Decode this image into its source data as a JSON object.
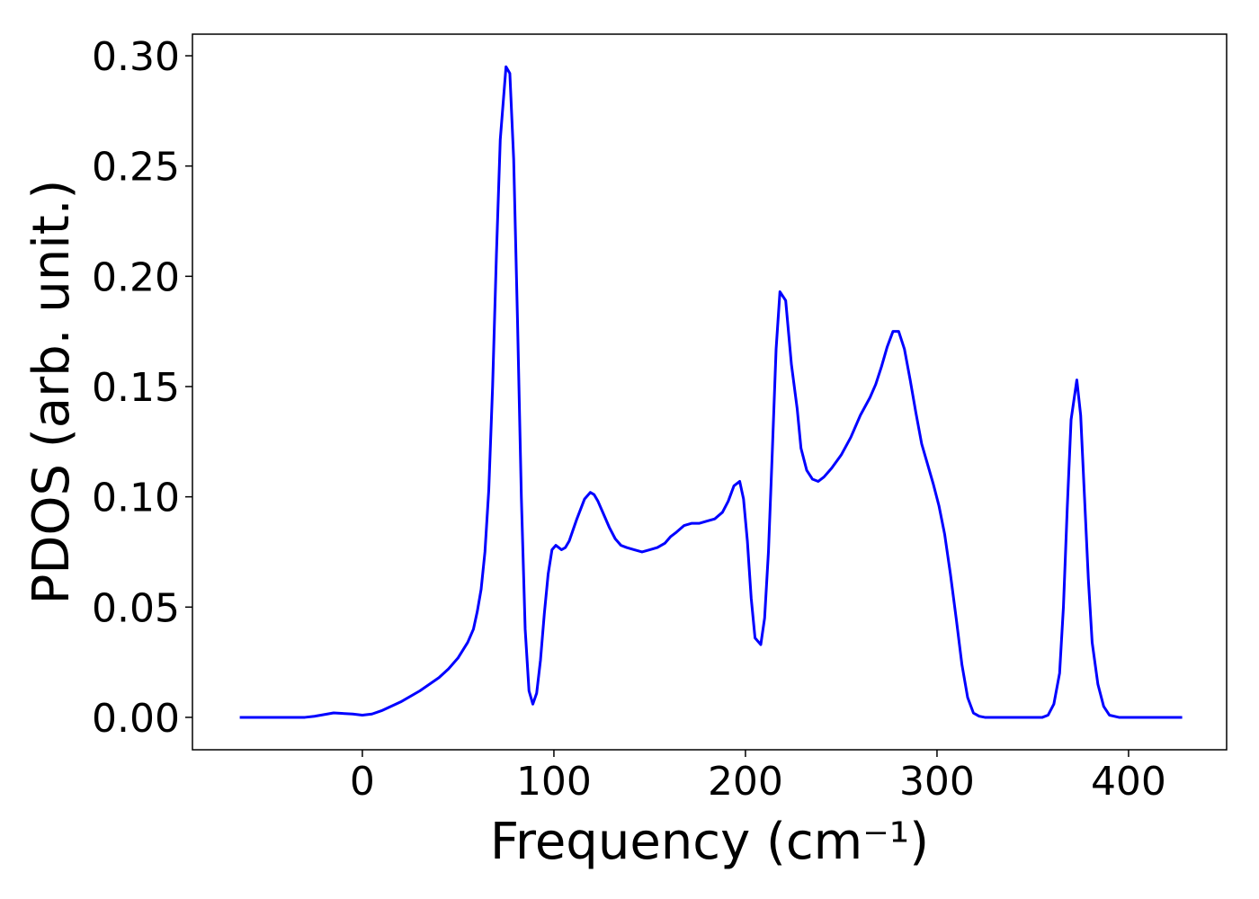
{
  "chart_data": {
    "type": "line",
    "xlabel": "Frequency (cm⁻¹)",
    "ylabel": "PDOS (arb. unit.)",
    "color": "#0000ff",
    "x": [
      -64,
      -30,
      -25,
      -15,
      -5,
      0,
      5,
      10,
      20,
      30,
      40,
      45,
      50,
      55,
      58,
      60,
      62,
      64,
      66,
      68,
      70,
      72,
      75,
      77,
      79,
      81,
      83,
      85,
      87,
      89,
      91,
      93,
      95,
      97,
      99,
      101,
      104,
      106,
      108,
      112,
      116,
      119,
      121,
      123,
      126,
      129,
      132,
      135,
      138,
      142,
      146,
      150,
      154,
      158,
      161,
      164,
      168,
      172,
      176,
      180,
      184,
      188,
      191,
      194,
      197,
      199,
      201,
      203,
      205,
      208,
      210,
      212,
      214,
      216,
      218,
      221,
      224,
      227,
      229,
      232,
      235,
      238,
      241,
      245,
      250,
      255,
      260,
      265,
      268,
      271,
      274,
      277,
      280,
      283,
      286,
      289,
      292,
      295,
      298,
      301,
      304,
      307,
      310,
      313,
      316,
      319,
      322,
      325,
      340,
      355,
      358,
      361,
      364,
      366,
      368,
      370,
      373,
      375,
      377,
      379,
      381,
      384,
      387,
      390,
      395,
      428
    ],
    "values": [
      0,
      0,
      0.0005,
      0.002,
      0.0015,
      0.001,
      0.0015,
      0.003,
      0.007,
      0.012,
      0.018,
      0.022,
      0.027,
      0.034,
      0.04,
      0.048,
      0.058,
      0.075,
      0.103,
      0.15,
      0.21,
      0.262,
      0.295,
      0.292,
      0.253,
      0.18,
      0.1,
      0.04,
      0.012,
      0.006,
      0.011,
      0.026,
      0.047,
      0.065,
      0.076,
      0.078,
      0.076,
      0.077,
      0.08,
      0.09,
      0.099,
      0.102,
      0.101,
      0.098,
      0.092,
      0.086,
      0.081,
      0.078,
      0.077,
      0.076,
      0.075,
      0.076,
      0.077,
      0.079,
      0.082,
      0.084,
      0.087,
      0.088,
      0.088,
      0.089,
      0.09,
      0.093,
      0.098,
      0.105,
      0.107,
      0.099,
      0.08,
      0.054,
      0.036,
      0.033,
      0.045,
      0.075,
      0.12,
      0.167,
      0.193,
      0.189,
      0.16,
      0.14,
      0.122,
      0.112,
      0.108,
      0.107,
      0.109,
      0.113,
      0.119,
      0.127,
      0.137,
      0.145,
      0.151,
      0.159,
      0.168,
      0.175,
      0.175,
      0.167,
      0.153,
      0.138,
      0.124,
      0.115,
      0.106,
      0.096,
      0.083,
      0.065,
      0.045,
      0.024,
      0.009,
      0.002,
      0.0005,
      0,
      0,
      0,
      0.001,
      0.006,
      0.02,
      0.05,
      0.095,
      0.135,
      0.153,
      0.137,
      0.1,
      0.063,
      0.034,
      0.015,
      0.005,
      0.001,
      0,
      0
    ],
    "xlim": [
      -88.7,
      451.2
    ],
    "ylim": [
      -0.0147,
      0.3098
    ],
    "xticks": [
      0,
      100,
      200,
      300,
      400
    ],
    "yticks": [
      {
        "value": 0,
        "label": "0.00"
      },
      {
        "value": 0.05,
        "label": "0.05"
      },
      {
        "value": 0.1,
        "label": "0.10"
      },
      {
        "value": 0.15,
        "label": "0.15"
      },
      {
        "value": 0.2,
        "label": "0.20"
      },
      {
        "value": 0.25,
        "label": "0.25"
      },
      {
        "value": 0.3,
        "label": "0.30"
      }
    ]
  }
}
